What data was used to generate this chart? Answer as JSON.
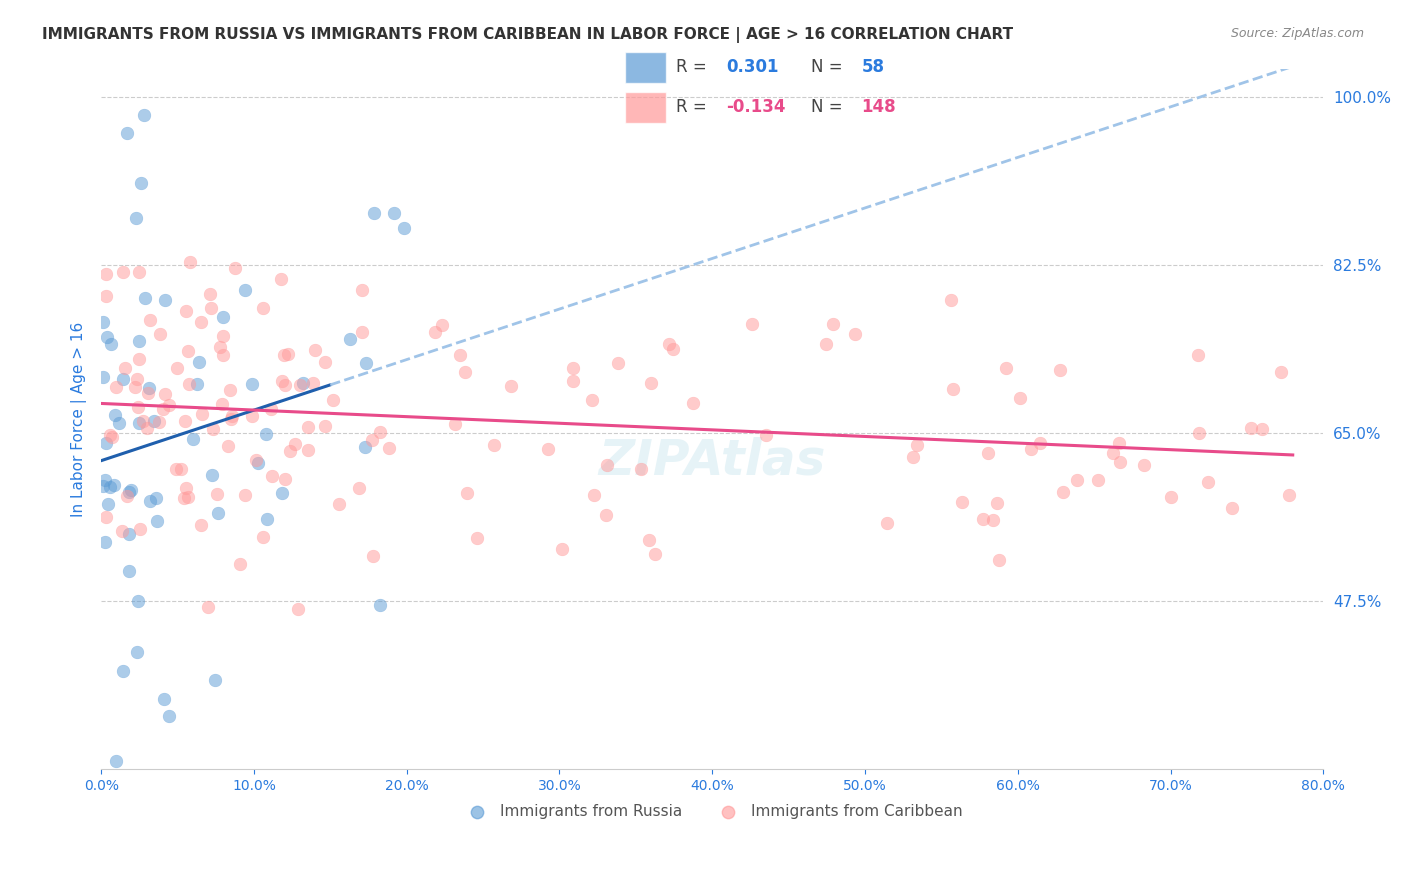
{
  "title": "IMMIGRANTS FROM RUSSIA VS IMMIGRANTS FROM CARIBBEAN IN LABOR FORCE | AGE > 16 CORRELATION CHART",
  "source": "Source: ZipAtlas.com",
  "ylabel": "In Labor Force | Age > 16",
  "yticks": [
    47.5,
    65.0,
    82.5,
    100.0
  ],
  "ytick_labels": [
    "47.5%",
    "65.0%",
    "82.5%",
    "100.0%"
  ],
  "xlim": [
    0.0,
    80.0
  ],
  "ylim": [
    30.0,
    103.0
  ],
  "russia_R": 0.301,
  "russia_N": 58,
  "caribbean_R": -0.134,
  "caribbean_N": 148,
  "blue_color": "#5B9BD5",
  "pink_color": "#FF9999",
  "blue_line_color": "#1F5FAD",
  "pink_line_color": "#E84B8A",
  "dashed_line_color": "#A0C4E8",
  "axis_label_color": "#2B7BDE",
  "background_color": "#FFFFFF",
  "grid_color": "#CCCCCC"
}
